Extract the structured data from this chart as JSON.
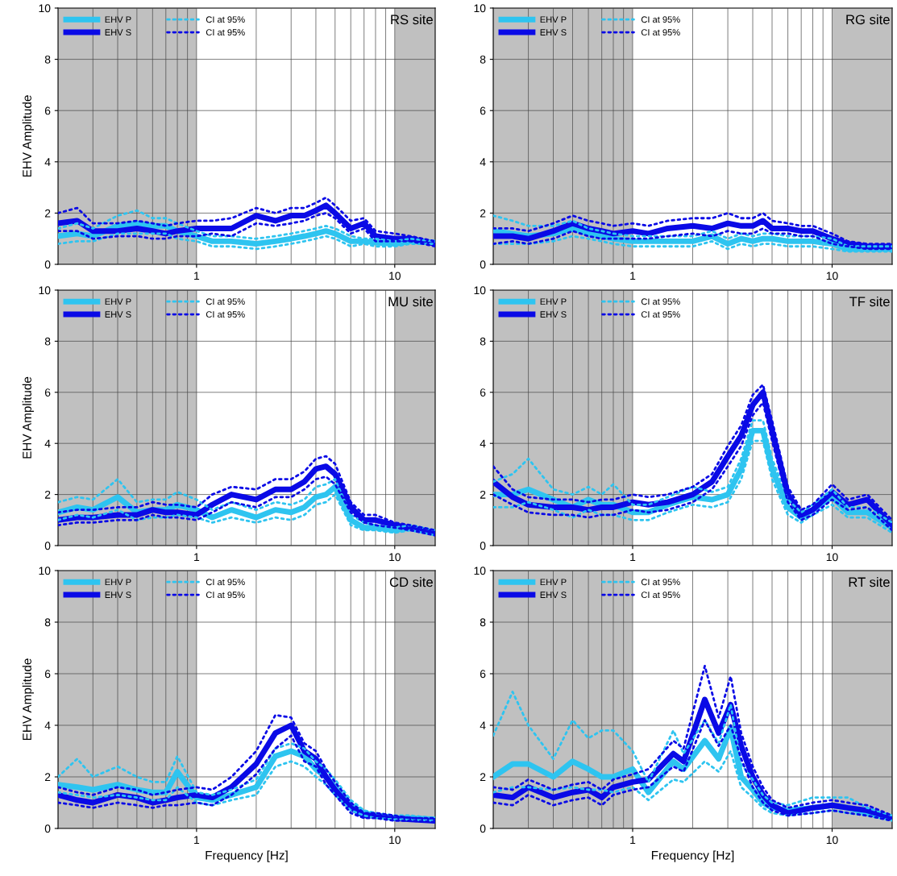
{
  "chart_data": [
    {
      "type": "line",
      "title": "RS site",
      "ylabel": "EHV Amplitude",
      "log": "x",
      "xlim": [
        0.2,
        16
      ],
      "ylim": [
        0,
        10
      ],
      "xticks": [
        1,
        10
      ],
      "yticks": [
        0,
        2,
        4,
        6,
        8,
        10
      ],
      "grid": true,
      "legend": "top left",
      "bands": [
        {
          "axis": "x",
          "from": 0.2,
          "to": 1,
          "color": "#c0c0c0"
        },
        {
          "axis": "x",
          "from": 10,
          "to": 16,
          "color": "#c0c0c0"
        }
      ],
      "x": [
        0.2,
        0.25,
        0.3,
        0.4,
        0.5,
        0.6,
        0.7,
        0.8,
        1,
        1.2,
        1.5,
        2,
        2.5,
        3,
        3.5,
        4,
        4.5,
        5,
        6,
        7,
        8,
        10,
        12,
        16
      ],
      "series": [
        {
          "name": "EHV P",
          "color": "#2ec4f0",
          "line_style": "solid",
          "values": [
            1.1,
            1.2,
            1.1,
            1.5,
            1.6,
            1.5,
            1.5,
            1.3,
            1.1,
            0.9,
            0.9,
            0.8,
            0.9,
            1.0,
            1.1,
            1.2,
            1.3,
            1.2,
            0.9,
            0.9,
            0.85,
            0.8,
            0.9,
            0.85
          ]
        },
        {
          "name": "EHV S",
          "color": "#0a0ae6",
          "line_style": "solid",
          "values": [
            1.6,
            1.7,
            1.3,
            1.3,
            1.4,
            1.3,
            1.2,
            1.3,
            1.4,
            1.4,
            1.4,
            1.9,
            1.7,
            1.9,
            1.9,
            2.1,
            2.3,
            2.0,
            1.4,
            1.6,
            1.1,
            1.0,
            1.0,
            0.8
          ]
        },
        {
          "name": "CI at 95%",
          "color": "#2ec4f0",
          "line_style": "dotted",
          "values": [
            1.4,
            1.6,
            1.4,
            1.9,
            2.1,
            1.8,
            1.8,
            1.6,
            1.3,
            1.1,
            1.1,
            1.0,
            1.1,
            1.2,
            1.3,
            1.4,
            1.5,
            1.4,
            1.1,
            1.0,
            1.0,
            0.9,
            1.0,
            0.9
          ]
        },
        {
          "color": "#2ec4f0",
          "line_style": "dotted",
          "values": [
            0.8,
            0.9,
            0.9,
            1.2,
            1.2,
            1.2,
            1.2,
            1.0,
            0.9,
            0.7,
            0.7,
            0.6,
            0.7,
            0.8,
            0.9,
            1.0,
            1.1,
            1.0,
            0.7,
            0.8,
            0.7,
            0.7,
            0.8,
            0.8
          ]
        },
        {
          "name": "CI at 95%",
          "color": "#0a0ae6",
          "line_style": "dotted",
          "values": [
            2.0,
            2.2,
            1.6,
            1.6,
            1.7,
            1.6,
            1.5,
            1.6,
            1.7,
            1.7,
            1.8,
            2.2,
            2.0,
            2.2,
            2.2,
            2.4,
            2.6,
            2.3,
            1.7,
            1.8,
            1.3,
            1.2,
            1.1,
            0.9
          ]
        },
        {
          "color": "#0a0ae6",
          "line_style": "dotted",
          "values": [
            1.3,
            1.3,
            1.0,
            1.1,
            1.1,
            1.0,
            1.0,
            1.1,
            1.1,
            1.2,
            1.1,
            1.6,
            1.5,
            1.6,
            1.7,
            1.9,
            2.0,
            1.8,
            1.2,
            1.4,
            0.9,
            0.9,
            0.9,
            0.7
          ]
        }
      ]
    },
    {
      "type": "line",
      "title": "RG site",
      "log": "x",
      "xlim": [
        0.2,
        20
      ],
      "ylim": [
        0,
        10
      ],
      "xticks": [
        1,
        10
      ],
      "yticks": [
        0,
        2,
        4,
        6,
        8,
        10
      ],
      "grid": true,
      "legend": "top left",
      "bands": [
        {
          "axis": "x",
          "from": 0.2,
          "to": 1,
          "color": "#c0c0c0"
        },
        {
          "axis": "x",
          "from": 10,
          "to": 20,
          "color": "#c0c0c0"
        }
      ],
      "x": [
        0.2,
        0.25,
        0.3,
        0.4,
        0.5,
        0.6,
        0.7,
        0.8,
        1,
        1.2,
        1.5,
        2,
        2.5,
        3,
        3.5,
        4,
        4.5,
        5,
        6,
        7,
        8,
        10,
        12,
        15,
        20
      ],
      "series": [
        {
          "name": "EHV P",
          "color": "#2ec4f0",
          "line_style": "solid",
          "values": [
            1.3,
            1.2,
            1.1,
            1.2,
            1.4,
            1.2,
            1.1,
            1.0,
            0.9,
            0.9,
            0.9,
            0.9,
            1.1,
            0.8,
            1.0,
            0.9,
            1.0,
            1.0,
            0.9,
            0.9,
            0.9,
            0.8,
            0.6,
            0.6,
            0.6
          ]
        },
        {
          "name": "EHV S",
          "color": "#0a0ae6",
          "line_style": "solid",
          "values": [
            1.1,
            1.1,
            1.0,
            1.3,
            1.6,
            1.4,
            1.3,
            1.2,
            1.3,
            1.2,
            1.4,
            1.5,
            1.4,
            1.6,
            1.5,
            1.5,
            1.7,
            1.4,
            1.4,
            1.3,
            1.3,
            1.0,
            0.8,
            0.7,
            0.7
          ]
        },
        {
          "name": "CI at 95%",
          "color": "#2ec4f0",
          "line_style": "dotted",
          "values": [
            1.9,
            1.7,
            1.5,
            1.5,
            1.7,
            1.4,
            1.3,
            1.2,
            1.1,
            1.1,
            1.1,
            1.1,
            1.3,
            1.0,
            1.2,
            1.1,
            1.2,
            1.2,
            1.1,
            1.1,
            1.1,
            1.0,
            0.7,
            0.7,
            0.7
          ]
        },
        {
          "color": "#2ec4f0",
          "line_style": "dotted",
          "values": [
            0.8,
            0.8,
            0.8,
            0.9,
            1.1,
            1.0,
            0.9,
            0.8,
            0.7,
            0.7,
            0.7,
            0.7,
            0.9,
            0.6,
            0.8,
            0.7,
            0.8,
            0.8,
            0.7,
            0.7,
            0.7,
            0.6,
            0.5,
            0.5,
            0.5
          ]
        },
        {
          "name": "CI at 95%",
          "color": "#0a0ae6",
          "line_style": "dotted",
          "values": [
            1.4,
            1.4,
            1.3,
            1.6,
            1.9,
            1.7,
            1.6,
            1.5,
            1.6,
            1.5,
            1.7,
            1.8,
            1.8,
            2.0,
            1.8,
            1.8,
            2.0,
            1.7,
            1.6,
            1.5,
            1.5,
            1.2,
            0.9,
            0.8,
            0.8
          ]
        },
        {
          "color": "#0a0ae6",
          "line_style": "dotted",
          "values": [
            0.8,
            0.9,
            0.8,
            1.0,
            1.3,
            1.1,
            1.0,
            1.0,
            1.0,
            1.0,
            1.1,
            1.2,
            1.1,
            1.3,
            1.2,
            1.2,
            1.4,
            1.2,
            1.2,
            1.1,
            1.1,
            0.8,
            0.7,
            0.6,
            0.6
          ]
        }
      ]
    },
    {
      "type": "line",
      "title": "MU site",
      "ylabel": "EHV Amplitude",
      "log": "x",
      "xlim": [
        0.2,
        16
      ],
      "ylim": [
        0,
        10
      ],
      "xticks": [
        1,
        10
      ],
      "yticks": [
        0,
        2,
        4,
        6,
        8,
        10
      ],
      "grid": true,
      "legend": "top left",
      "bands": [
        {
          "axis": "x",
          "from": 0.2,
          "to": 1,
          "color": "#c0c0c0"
        },
        {
          "axis": "x",
          "from": 10,
          "to": 16,
          "color": "#c0c0c0"
        }
      ],
      "x": [
        0.2,
        0.25,
        0.3,
        0.4,
        0.5,
        0.6,
        0.7,
        0.8,
        1,
        1.2,
        1.5,
        2,
        2.5,
        3,
        3.5,
        4,
        4.5,
        5,
        6,
        7,
        8,
        10,
        12,
        16
      ],
      "series": [
        {
          "name": "EHV P",
          "color": "#2ec4f0",
          "line_style": "solid",
          "values": [
            1.3,
            1.5,
            1.4,
            1.9,
            1.3,
            1.4,
            1.4,
            1.6,
            1.4,
            1.1,
            1.4,
            1.1,
            1.4,
            1.3,
            1.5,
            1.9,
            2.0,
            2.3,
            1.0,
            0.7,
            0.7,
            0.6,
            0.7,
            0.5
          ]
        },
        {
          "name": "EHV S",
          "color": "#0a0ae6",
          "line_style": "solid",
          "values": [
            1.0,
            1.1,
            1.1,
            1.2,
            1.2,
            1.4,
            1.3,
            1.3,
            1.2,
            1.6,
            2.0,
            1.8,
            2.2,
            2.2,
            2.5,
            3.0,
            3.1,
            2.8,
            1.5,
            1.0,
            1.0,
            0.8,
            0.7,
            0.5
          ]
        },
        {
          "name": "CI at 95%",
          "color": "#2ec4f0",
          "line_style": "dotted",
          "values": [
            1.7,
            1.9,
            1.8,
            2.6,
            1.7,
            1.8,
            1.8,
            2.1,
            1.8,
            1.4,
            1.7,
            1.4,
            1.7,
            1.6,
            1.8,
            2.3,
            2.4,
            2.6,
            1.2,
            0.9,
            0.8,
            0.7,
            0.8,
            0.6
          ]
        },
        {
          "color": "#2ec4f0",
          "line_style": "dotted",
          "values": [
            1.0,
            1.2,
            1.1,
            1.4,
            1.0,
            1.1,
            1.1,
            1.2,
            1.1,
            0.9,
            1.1,
            0.9,
            1.1,
            1.0,
            1.2,
            1.6,
            1.7,
            2.0,
            0.8,
            0.6,
            0.6,
            0.5,
            0.6,
            0.4
          ]
        },
        {
          "name": "CI at 95%",
          "color": "#0a0ae6",
          "line_style": "dotted",
          "values": [
            1.3,
            1.4,
            1.4,
            1.5,
            1.5,
            1.7,
            1.6,
            1.6,
            1.5,
            2.0,
            2.3,
            2.2,
            2.6,
            2.6,
            2.9,
            3.4,
            3.5,
            3.2,
            1.7,
            1.2,
            1.2,
            0.9,
            0.8,
            0.6
          ]
        },
        {
          "color": "#0a0ae6",
          "line_style": "dotted",
          "values": [
            0.8,
            0.9,
            0.9,
            1.0,
            1.0,
            1.2,
            1.1,
            1.1,
            1.0,
            1.3,
            1.7,
            1.5,
            1.9,
            1.9,
            2.2,
            2.6,
            2.7,
            2.4,
            1.3,
            0.9,
            0.8,
            0.7,
            0.6,
            0.4
          ]
        }
      ]
    },
    {
      "type": "line",
      "title": "TF site",
      "log": "x",
      "xlim": [
        0.2,
        20
      ],
      "ylim": [
        0,
        10
      ],
      "xticks": [
        1,
        10
      ],
      "yticks": [
        0,
        2,
        4,
        6,
        8,
        10
      ],
      "grid": true,
      "legend": "top left",
      "bands": [
        {
          "axis": "x",
          "from": 0.2,
          "to": 1,
          "color": "#c0c0c0"
        },
        {
          "axis": "x",
          "from": 10,
          "to": 20,
          "color": "#c0c0c0"
        }
      ],
      "x": [
        0.2,
        0.25,
        0.3,
        0.4,
        0.5,
        0.6,
        0.7,
        0.8,
        1,
        1.2,
        1.5,
        2,
        2.5,
        3,
        3.5,
        4,
        4.5,
        5,
        6,
        7,
        8,
        10,
        12,
        15,
        20
      ],
      "series": [
        {
          "name": "EHV P",
          "color": "#2ec4f0",
          "line_style": "solid",
          "values": [
            2.0,
            2.0,
            2.2,
            1.8,
            1.5,
            1.8,
            1.6,
            1.6,
            1.3,
            1.3,
            1.6,
            1.9,
            1.8,
            2.0,
            3.0,
            4.5,
            4.5,
            3.0,
            1.5,
            1.1,
            1.4,
            1.9,
            1.3,
            1.3,
            0.7
          ]
        },
        {
          "name": "EHV S",
          "color": "#0a0ae6",
          "line_style": "solid",
          "values": [
            2.5,
            1.9,
            1.6,
            1.5,
            1.5,
            1.4,
            1.5,
            1.5,
            1.7,
            1.6,
            1.7,
            2.0,
            2.5,
            3.5,
            4.3,
            5.5,
            6.0,
            4.5,
            2.0,
            1.2,
            1.4,
            2.1,
            1.6,
            1.8,
            0.8
          ]
        },
        {
          "name": "CI at 95%",
          "color": "#2ec4f0",
          "line_style": "dotted",
          "values": [
            2.5,
            2.8,
            3.4,
            2.2,
            2.0,
            2.3,
            2.0,
            2.4,
            1.6,
            1.6,
            1.9,
            2.3,
            2.1,
            2.3,
            3.4,
            4.9,
            4.9,
            3.4,
            1.8,
            1.3,
            1.6,
            2.2,
            1.5,
            1.5,
            0.9
          ]
        },
        {
          "color": "#2ec4f0",
          "line_style": "dotted",
          "values": [
            1.5,
            1.5,
            1.7,
            1.4,
            1.1,
            1.4,
            1.2,
            1.2,
            1.0,
            1.0,
            1.3,
            1.6,
            1.5,
            1.7,
            2.6,
            4.1,
            4.1,
            2.6,
            1.2,
            0.9,
            1.2,
            1.6,
            1.1,
            1.1,
            0.5
          ]
        },
        {
          "name": "CI at 95%",
          "color": "#0a0ae6",
          "line_style": "dotted",
          "values": [
            3.1,
            2.2,
            1.9,
            1.8,
            1.8,
            1.7,
            1.8,
            1.8,
            2.0,
            1.9,
            2.0,
            2.3,
            2.8,
            3.9,
            4.7,
            5.9,
            6.3,
            4.9,
            2.3,
            1.4,
            1.6,
            2.4,
            1.8,
            2.0,
            1.0
          ]
        },
        {
          "color": "#0a0ae6",
          "line_style": "dotted",
          "values": [
            2.0,
            1.6,
            1.3,
            1.2,
            1.2,
            1.1,
            1.2,
            1.2,
            1.4,
            1.3,
            1.4,
            1.7,
            2.2,
            3.1,
            3.9,
            5.1,
            5.6,
            4.1,
            1.7,
            1.0,
            1.2,
            1.8,
            1.4,
            1.5,
            0.6
          ]
        }
      ]
    },
    {
      "type": "line",
      "title": "CD site",
      "xlabel": "Frequency [Hz]",
      "ylabel": "EHV Amplitude",
      "log": "x",
      "xlim": [
        0.2,
        16
      ],
      "ylim": [
        0,
        10
      ],
      "xticks": [
        1,
        10
      ],
      "yticks": [
        0,
        2,
        4,
        6,
        8,
        10
      ],
      "grid": true,
      "legend": "top left",
      "bands": [
        {
          "axis": "x",
          "from": 0.2,
          "to": 1,
          "color": "#c0c0c0"
        },
        {
          "axis": "x",
          "from": 10,
          "to": 16,
          "color": "#c0c0c0"
        }
      ],
      "x": [
        0.2,
        0.25,
        0.3,
        0.4,
        0.5,
        0.6,
        0.7,
        0.8,
        1,
        1.2,
        1.5,
        2,
        2.5,
        3,
        3.5,
        4,
        4.5,
        5,
        6,
        7,
        8,
        10,
        12,
        16
      ],
      "series": [
        {
          "name": "EHV P",
          "color": "#2ec4f0",
          "line_style": "solid",
          "values": [
            1.7,
            1.6,
            1.5,
            1.7,
            1.5,
            1.4,
            1.4,
            2.2,
            1.2,
            1.1,
            1.3,
            1.6,
            2.8,
            3.0,
            2.8,
            2.3,
            2.0,
            1.6,
            0.9,
            0.6,
            0.5,
            0.4,
            0.4,
            0.35
          ]
        },
        {
          "name": "EHV S",
          "color": "#0a0ae6",
          "line_style": "solid",
          "values": [
            1.3,
            1.1,
            1.0,
            1.3,
            1.2,
            1.0,
            1.1,
            1.2,
            1.3,
            1.2,
            1.6,
            2.5,
            3.7,
            4.0,
            3.0,
            2.7,
            2.0,
            1.5,
            0.8,
            0.5,
            0.5,
            0.4,
            0.35,
            0.3
          ]
        },
        {
          "name": "CI at 95%",
          "color": "#2ec4f0",
          "line_style": "dotted",
          "values": [
            2.0,
            2.7,
            2.0,
            2.4,
            2.0,
            1.8,
            1.8,
            2.8,
            1.4,
            1.3,
            1.5,
            1.9,
            3.1,
            3.3,
            3.1,
            2.6,
            2.3,
            1.9,
            1.1,
            0.7,
            0.6,
            0.5,
            0.5,
            0.4
          ]
        },
        {
          "color": "#2ec4f0",
          "line_style": "dotted",
          "values": [
            1.4,
            1.3,
            1.2,
            1.3,
            1.2,
            1.1,
            1.1,
            1.6,
            1.0,
            0.9,
            1.1,
            1.3,
            2.4,
            2.6,
            2.4,
            2.0,
            1.7,
            1.3,
            0.7,
            0.5,
            0.4,
            0.35,
            0.35,
            0.3
          ]
        },
        {
          "name": "CI at 95%",
          "color": "#0a0ae6",
          "line_style": "dotted",
          "values": [
            1.6,
            1.4,
            1.3,
            1.6,
            1.5,
            1.3,
            1.4,
            1.5,
            1.6,
            1.5,
            2.0,
            3.0,
            4.4,
            4.3,
            3.3,
            3.0,
            2.3,
            1.8,
            1.0,
            0.6,
            0.6,
            0.5,
            0.4,
            0.4
          ]
        },
        {
          "color": "#0a0ae6",
          "line_style": "dotted",
          "values": [
            1.0,
            0.9,
            0.8,
            1.0,
            0.9,
            0.8,
            0.9,
            0.9,
            1.0,
            0.9,
            1.3,
            2.1,
            3.1,
            3.6,
            2.6,
            2.4,
            1.7,
            1.3,
            0.6,
            0.4,
            0.4,
            0.3,
            0.3,
            0.25
          ]
        }
      ]
    },
    {
      "type": "line",
      "title": "RT site",
      "xlabel": "Frequency [Hz]",
      "log": "x",
      "xlim": [
        0.2,
        20
      ],
      "ylim": [
        0,
        10
      ],
      "xticks": [
        1,
        10
      ],
      "yticks": [
        0,
        2,
        4,
        6,
        8,
        10
      ],
      "grid": true,
      "legend": "top left",
      "bands": [
        {
          "axis": "x",
          "from": 0.2,
          "to": 1,
          "color": "#c0c0c0"
        },
        {
          "axis": "x",
          "from": 10,
          "to": 20,
          "color": "#c0c0c0"
        }
      ],
      "x": [
        0.2,
        0.25,
        0.3,
        0.4,
        0.5,
        0.6,
        0.7,
        0.8,
        1,
        1.2,
        1.6,
        1.8,
        2.3,
        2.7,
        3.1,
        3.5,
        4,
        4.5,
        5,
        6,
        8,
        10,
        12,
        15,
        20
      ],
      "series": [
        {
          "name": "EHV P",
          "color": "#2ec4f0",
          "line_style": "solid",
          "values": [
            2.0,
            2.5,
            2.5,
            2.0,
            2.6,
            2.3,
            2.0,
            2.0,
            2.3,
            1.4,
            2.6,
            2.3,
            3.4,
            2.7,
            3.9,
            2.0,
            1.5,
            1.0,
            0.8,
            0.7,
            0.8,
            0.9,
            0.8,
            0.6,
            0.4
          ]
        },
        {
          "name": "EHV S",
          "color": "#0a0ae6",
          "line_style": "solid",
          "values": [
            1.3,
            1.2,
            1.6,
            1.2,
            1.4,
            1.5,
            1.2,
            1.6,
            1.8,
            1.9,
            2.9,
            2.6,
            5.0,
            3.7,
            4.8,
            3.2,
            2.0,
            1.3,
            0.9,
            0.6,
            0.8,
            0.9,
            0.8,
            0.7,
            0.4
          ]
        },
        {
          "name": "CI at 95%",
          "color": "#2ec4f0",
          "line_style": "dotted",
          "values": [
            3.6,
            5.3,
            4.0,
            2.7,
            4.2,
            3.5,
            3.8,
            3.8,
            3.0,
            1.8,
            3.8,
            2.9,
            4.2,
            3.3,
            4.8,
            2.5,
            1.9,
            1.3,
            1.0,
            0.9,
            1.2,
            1.2,
            1.2,
            0.8,
            0.5
          ]
        },
        {
          "color": "#2ec4f0",
          "line_style": "dotted",
          "values": [
            1.4,
            1.6,
            1.6,
            1.5,
            1.6,
            1.5,
            1.5,
            1.4,
            1.6,
            1.1,
            1.9,
            1.8,
            2.6,
            2.2,
            3.0,
            1.6,
            1.2,
            0.8,
            0.6,
            0.5,
            0.6,
            0.7,
            0.6,
            0.5,
            0.3
          ]
        },
        {
          "name": "CI at 95%",
          "color": "#0a0ae6",
          "line_style": "dotted",
          "values": [
            1.6,
            1.5,
            1.9,
            1.5,
            1.7,
            1.8,
            1.5,
            1.9,
            2.1,
            2.3,
            3.4,
            3.1,
            6.3,
            4.3,
            5.9,
            3.7,
            2.4,
            1.6,
            1.1,
            0.8,
            1.0,
            1.1,
            1.0,
            0.9,
            0.5
          ]
        },
        {
          "color": "#0a0ae6",
          "line_style": "dotted",
          "values": [
            1.0,
            0.9,
            1.3,
            0.9,
            1.1,
            1.2,
            0.9,
            1.3,
            1.5,
            1.6,
            2.4,
            2.2,
            4.2,
            3.2,
            4.0,
            2.7,
            1.6,
            1.0,
            0.7,
            0.5,
            0.6,
            0.7,
            0.6,
            0.5,
            0.3
          ]
        }
      ]
    }
  ]
}
